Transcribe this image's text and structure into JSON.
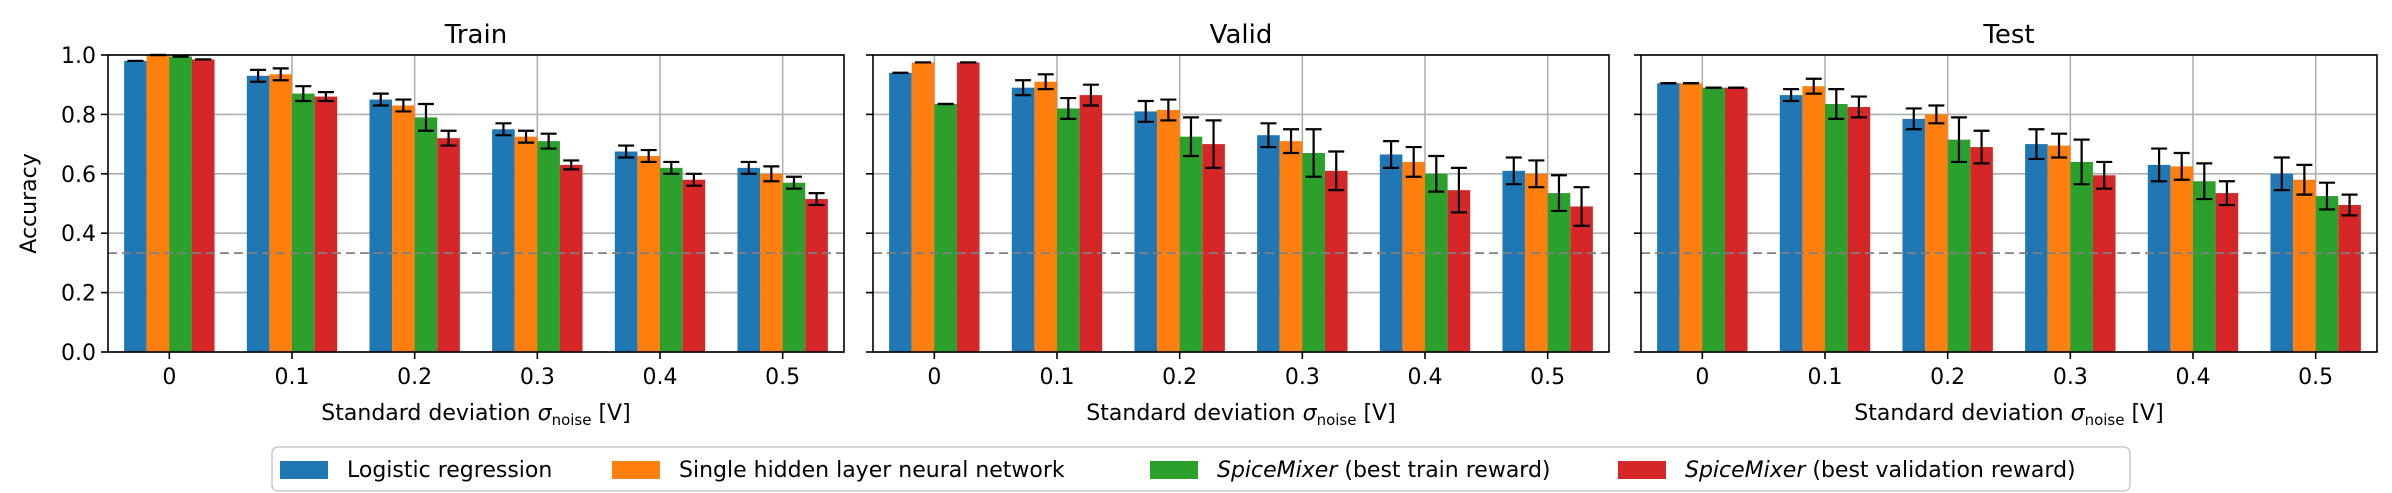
{
  "legend": {
    "placement": "bottom-center",
    "entries": [
      {
        "name": "Logistic regression",
        "color": "#1f77b4"
      },
      {
        "name": "Single hidden layer neural network",
        "color": "#ff7f0e"
      },
      {
        "name": "SpiceMixer (best train reward)",
        "color": "#2ca02c",
        "italic_prefix": "SpiceMixer",
        "suffix": " (best train reward)"
      },
      {
        "name": "SpiceMixer (best validation reward)",
        "color": "#d62728",
        "italic_prefix": "SpiceMixer",
        "suffix": " (best validation reward)"
      }
    ]
  },
  "chart_data": [
    {
      "type": "bar",
      "title": "Train",
      "xlabel": "Standard deviation σnoise [V]",
      "ylabel": "Accuracy",
      "categories": [
        "0",
        "0.1",
        "0.2",
        "0.3",
        "0.4",
        "0.5"
      ],
      "ylim": [
        0,
        1
      ],
      "yticks": [
        "0.0",
        "0.2",
        "0.4",
        "0.6",
        "0.8",
        "1.0"
      ],
      "grid": true,
      "reference_line": 0.333,
      "series": [
        {
          "name": "Logistic regression",
          "values": [
            0.98,
            0.93,
            0.85,
            0.75,
            0.675,
            0.62
          ],
          "errors": [
            0.0,
            0.02,
            0.02,
            0.02,
            0.02,
            0.02
          ]
        },
        {
          "name": "Single hidden layer neural network",
          "values": [
            1.0,
            0.935,
            0.83,
            0.725,
            0.66,
            0.6
          ],
          "errors": [
            0.0,
            0.02,
            0.02,
            0.02,
            0.02,
            0.025
          ]
        },
        {
          "name": "SpiceMixer (best train reward)",
          "values": [
            0.995,
            0.87,
            0.79,
            0.71,
            0.62,
            0.57
          ],
          "errors": [
            0.0,
            0.025,
            0.045,
            0.025,
            0.02,
            0.02
          ]
        },
        {
          "name": "SpiceMixer (best validation reward)",
          "values": [
            0.985,
            0.86,
            0.72,
            0.63,
            0.58,
            0.515
          ],
          "errors": [
            0.0,
            0.015,
            0.025,
            0.015,
            0.02,
            0.02
          ]
        }
      ]
    },
    {
      "type": "bar",
      "title": "Valid",
      "xlabel": "Standard deviation σnoise [V]",
      "ylabel": "",
      "categories": [
        "0",
        "0.1",
        "0.2",
        "0.3",
        "0.4",
        "0.5"
      ],
      "ylim": [
        0,
        1
      ],
      "yticks": [
        "0.0",
        "0.2",
        "0.4",
        "0.6",
        "0.8",
        "1.0"
      ],
      "grid": true,
      "reference_line": 0.333,
      "series": [
        {
          "name": "Logistic regression",
          "values": [
            0.94,
            0.89,
            0.81,
            0.73,
            0.665,
            0.61
          ],
          "errors": [
            0.0,
            0.025,
            0.035,
            0.04,
            0.045,
            0.045
          ]
        },
        {
          "name": "Single hidden layer neural network",
          "values": [
            0.975,
            0.91,
            0.815,
            0.71,
            0.64,
            0.6
          ],
          "errors": [
            0.0,
            0.025,
            0.035,
            0.04,
            0.05,
            0.045
          ]
        },
        {
          "name": "SpiceMixer (best train reward)",
          "values": [
            0.835,
            0.82,
            0.725,
            0.67,
            0.6,
            0.535
          ],
          "errors": [
            0.0,
            0.035,
            0.065,
            0.08,
            0.06,
            0.06
          ]
        },
        {
          "name": "SpiceMixer (best validation reward)",
          "values": [
            0.975,
            0.865,
            0.7,
            0.61,
            0.545,
            0.49
          ],
          "errors": [
            0.0,
            0.035,
            0.08,
            0.065,
            0.075,
            0.065
          ]
        }
      ]
    },
    {
      "type": "bar",
      "title": "Test",
      "xlabel": "Standard deviation σnoise [V]",
      "ylabel": "",
      "categories": [
        "0",
        "0.1",
        "0.2",
        "0.3",
        "0.4",
        "0.5"
      ],
      "ylim": [
        0,
        1
      ],
      "yticks": [
        "0.0",
        "0.2",
        "0.4",
        "0.6",
        "0.8",
        "1.0"
      ],
      "grid": true,
      "reference_line": 0.333,
      "series": [
        {
          "name": "Logistic regression",
          "values": [
            0.905,
            0.865,
            0.785,
            0.7,
            0.63,
            0.6
          ],
          "errors": [
            0.0,
            0.02,
            0.035,
            0.05,
            0.055,
            0.055
          ]
        },
        {
          "name": "Single hidden layer neural network",
          "values": [
            0.905,
            0.895,
            0.8,
            0.695,
            0.625,
            0.58
          ],
          "errors": [
            0.0,
            0.025,
            0.03,
            0.04,
            0.045,
            0.05
          ]
        },
        {
          "name": "SpiceMixer (best train reward)",
          "values": [
            0.89,
            0.835,
            0.715,
            0.64,
            0.575,
            0.525
          ],
          "errors": [
            0.0,
            0.05,
            0.075,
            0.075,
            0.06,
            0.045
          ]
        },
        {
          "name": "SpiceMixer (best validation reward)",
          "values": [
            0.89,
            0.825,
            0.69,
            0.595,
            0.535,
            0.495
          ],
          "errors": [
            0.0,
            0.035,
            0.055,
            0.045,
            0.04,
            0.035
          ]
        }
      ]
    }
  ]
}
